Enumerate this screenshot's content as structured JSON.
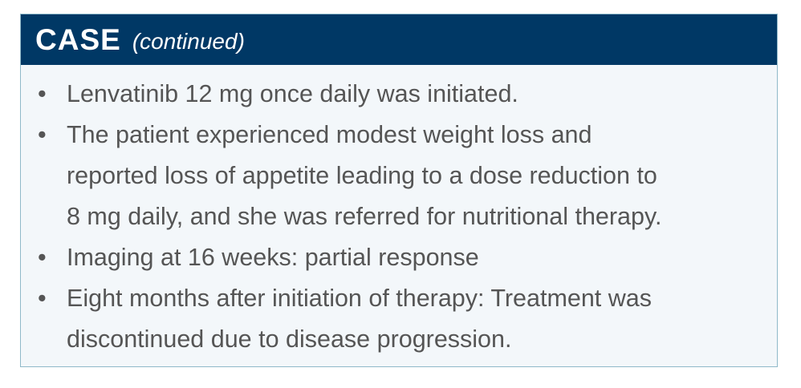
{
  "header": {
    "title": "CASE",
    "subtitle": "(continued)"
  },
  "items": [
    [
      "Lenvatinib 12 mg once daily was initiated."
    ],
    [
      "The patient experienced modest weight loss and",
      "reported loss of appetite leading to a dose reduction to",
      "8 mg daily, and she was referred for nutritional therapy."
    ],
    [
      "Imaging at 16 weeks: partial response"
    ],
    [
      "Eight months after initiation of therapy: Treatment was",
      "discontinued due to disease progression."
    ]
  ]
}
